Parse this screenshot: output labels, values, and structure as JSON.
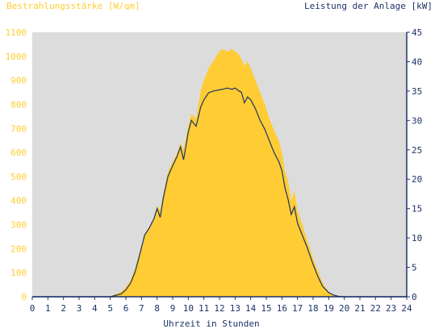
{
  "colors": {
    "plot_bg": "#dcdcdc",
    "irradiance": "#ffcc33",
    "power": "#1c3366",
    "left_axis_text": "#ffcc33",
    "right_axis_text": "#1c3366",
    "axis": "#1c3366"
  },
  "chart_data": {
    "type": "area",
    "left_title": "Bestrahlungsstärke [W/qm]",
    "right_title": "Leistung der Anlage [kW]",
    "xlabel": "Uhrzeit in Stunden",
    "x_ticks": [
      "0",
      "1",
      "2",
      "3",
      "4",
      "5",
      "6",
      "7",
      "8",
      "9",
      "10",
      "11",
      "12",
      "13",
      "14",
      "15",
      "16",
      "17",
      "18",
      "19",
      "20",
      "21",
      "22",
      "23",
      "24"
    ],
    "y_left_ticks": [
      "0",
      "100",
      "200",
      "300",
      "400",
      "500",
      "600",
      "700",
      "800",
      "900",
      "1000",
      "1100"
    ],
    "y_right_ticks": [
      "0",
      "5",
      "10",
      "15",
      "20",
      "25",
      "30",
      "35",
      "40",
      "45"
    ],
    "xlim": [
      0,
      24
    ],
    "ylim_left": [
      0,
      1100
    ],
    "ylim_right": [
      0,
      45
    ],
    "grid": false,
    "series": [
      {
        "axis": "left",
        "style": "filled-area",
        "x": [
          0,
          5,
          5.3,
          5.7,
          6,
          6.3,
          6.6,
          6.9,
          7.2,
          7.5,
          7.8,
          8,
          8.2,
          8.4,
          8.7,
          9,
          9.3,
          9.5,
          9.7,
          10,
          10.2,
          10.5,
          10.8,
          11,
          11.3,
          11.6,
          11.8,
          12,
          12.2,
          12.5,
          12.8,
          13,
          13.2,
          13.4,
          13.6,
          13.8,
          14,
          14.3,
          14.6,
          14.9,
          15.2,
          15.5,
          15.8,
          16,
          16.2,
          16.4,
          16.6,
          16.8,
          17,
          17.3,
          17.6,
          18,
          18.3,
          18.6,
          19,
          19.3,
          19.6,
          20,
          24
        ],
        "values": [
          0,
          0,
          10,
          20,
          40,
          70,
          120,
          190,
          260,
          290,
          330,
          380,
          360,
          430,
          520,
          560,
          600,
          640,
          610,
          710,
          760,
          740,
          860,
          900,
          950,
          980,
          1000,
          1020,
          1030,
          1020,
          1030,
          1020,
          1010,
          990,
          960,
          980,
          950,
          900,
          850,
          800,
          740,
          690,
          650,
          600,
          520,
          480,
          400,
          440,
          360,
          300,
          240,
          160,
          110,
          60,
          20,
          8,
          2,
          0,
          0
        ]
      },
      {
        "axis": "right",
        "style": "line",
        "x": [
          0,
          5,
          5.3,
          5.7,
          6,
          6.3,
          6.6,
          6.9,
          7.2,
          7.5,
          7.8,
          8,
          8.2,
          8.4,
          8.7,
          9,
          9.3,
          9.5,
          9.7,
          10,
          10.2,
          10.5,
          10.8,
          11,
          11.3,
          11.6,
          11.8,
          12,
          12.2,
          12.5,
          12.8,
          13,
          13.2,
          13.4,
          13.6,
          13.8,
          14,
          14.3,
          14.6,
          14.9,
          15.2,
          15.5,
          15.8,
          16,
          16.2,
          16.4,
          16.6,
          16.8,
          17,
          17.3,
          17.6,
          18,
          18.3,
          18.6,
          19,
          19.3,
          19.6,
          20,
          24
        ],
        "values": [
          0,
          0,
          0.2,
          0.5,
          1.2,
          2.3,
          4.3,
          7.3,
          10.5,
          11.7,
          13.3,
          15.0,
          13.5,
          16.8,
          20.5,
          22.3,
          24.0,
          25.5,
          23.3,
          28.0,
          30.0,
          29.0,
          32.3,
          33.5,
          34.7,
          35.0,
          35.1,
          35.2,
          35.3,
          35.5,
          35.3,
          35.5,
          35.1,
          34.8,
          33.0,
          34.0,
          33.5,
          32.0,
          30.0,
          28.5,
          26.5,
          24.5,
          23.0,
          21.5,
          18.5,
          16.5,
          14.0,
          15.3,
          12.5,
          10.5,
          8.5,
          5.5,
          3.5,
          1.8,
          0.7,
          0.3,
          0.1,
          0,
          0
        ]
      }
    ]
  }
}
